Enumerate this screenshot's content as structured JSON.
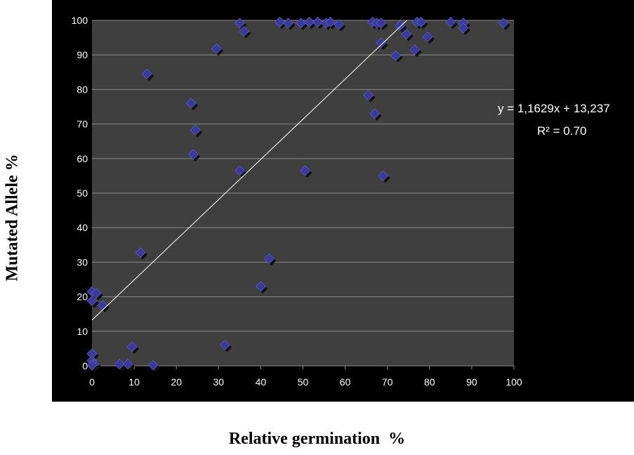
{
  "chart_data": {
    "type": "scatter",
    "title": "",
    "xlabel": "Relative germination  %",
    "ylabel": "Mutated Allele %",
    "xlim": [
      0,
      100
    ],
    "ylim": [
      0,
      100
    ],
    "x_ticks": [
      "0",
      "10",
      "20",
      "30",
      "40",
      "50",
      "60",
      "70",
      "80",
      "90",
      "100"
    ],
    "y_ticks": [
      "0",
      "10",
      "20",
      "30",
      "40",
      "50",
      "60",
      "70",
      "80",
      "90",
      "100"
    ],
    "grid": "horizontal",
    "marker_color": "#3a3a9a",
    "plot_background": "#3f3f3f",
    "background": "#000000",
    "trendline": {
      "type": "linear",
      "slope": 1.1629,
      "intercept": 13.237,
      "color": "#ffffff",
      "equation": "y = 1,1629x + 13,237",
      "r2": "R² = 0.70"
    },
    "series": [
      {
        "points": [
          [
            0,
            21.5
          ],
          [
            1,
            21
          ],
          [
            0,
            18.8
          ],
          [
            2.5,
            17.5
          ],
          [
            0,
            3.5
          ],
          [
            0,
            1.5
          ],
          [
            0.5,
            0.5
          ],
          [
            0,
            0.2
          ],
          [
            6.5,
            0.5
          ],
          [
            8.5,
            0.5
          ],
          [
            9.5,
            5.5
          ],
          [
            14.5,
            0.2
          ],
          [
            11.5,
            32.8
          ],
          [
            13,
            84.5
          ],
          [
            23.5,
            76
          ],
          [
            24.5,
            68.2
          ],
          [
            24,
            61.2
          ],
          [
            29.5,
            91.8
          ],
          [
            31.5,
            6
          ],
          [
            35,
            99.2
          ],
          [
            36,
            96.8
          ],
          [
            35,
            56.5
          ],
          [
            40,
            23
          ],
          [
            42,
            31
          ],
          [
            44.5,
            99.5
          ],
          [
            46.5,
            99.2
          ],
          [
            49.5,
            99.2
          ],
          [
            50.5,
            56.5
          ],
          [
            51.5,
            99.5
          ],
          [
            53.5,
            99.5
          ],
          [
            55.5,
            99.2
          ],
          [
            56.5,
            99.5
          ],
          [
            58.5,
            98.8
          ],
          [
            65.5,
            78.3
          ],
          [
            66.5,
            99.5
          ],
          [
            67,
            73
          ],
          [
            67.5,
            99.2
          ],
          [
            68.5,
            99.2
          ],
          [
            68.5,
            93.5
          ],
          [
            69,
            55
          ],
          [
            72,
            89.8
          ],
          [
            73,
            98.5
          ],
          [
            74.5,
            96
          ],
          [
            76.5,
            91.5
          ],
          [
            77,
            99.5
          ],
          [
            78,
            99.5
          ],
          [
            79.5,
            95.2
          ],
          [
            85,
            99.5
          ],
          [
            88,
            99.2
          ],
          [
            88,
            97.8
          ],
          [
            97.5,
            99.2
          ]
        ]
      }
    ]
  }
}
